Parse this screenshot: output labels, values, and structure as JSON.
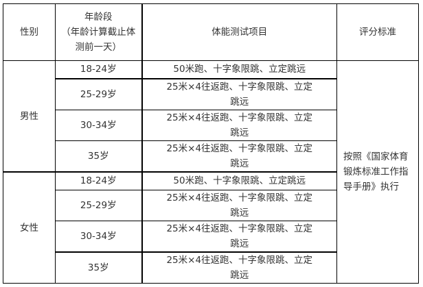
{
  "headers": {
    "gender": "性别",
    "age": "年龄段（年龄计算截止体测前一天）",
    "age_line1": "年龄段",
    "age_line2": "（年龄计算截止体测前一天）",
    "project": "体能测试项目",
    "standard": "评分标准"
  },
  "groups": [
    {
      "gender": "男性",
      "rows": [
        {
          "age": "18-24岁",
          "project": "50米跑、十字象限跳、立定跳远"
        },
        {
          "age": "25-29岁",
          "project": "25米×4往返跑、十字象限跳、立定跳远"
        },
        {
          "age": "30-34岁",
          "project": "25米×4往返跑、十字象限跳、立定跳远"
        },
        {
          "age": "35岁",
          "project": "25米×4往返跑、十字象限跳、立定跳远"
        }
      ]
    },
    {
      "gender": "女性",
      "rows": [
        {
          "age": "18-24岁",
          "project": "50米跑、十字象限跳、立定跳远"
        },
        {
          "age": "25-29岁",
          "project": "25米×4往返跑、十字象限跳、立定跳远"
        },
        {
          "age": "30-34岁",
          "project": "25米×4往返跑、十字象限跳、立定跳远"
        },
        {
          "age": "35岁",
          "project": "25米×4往返跑、十字象限跳、立定跳远"
        }
      ]
    }
  ],
  "standard": "按照《国家体育锻炼标准工作指导手册》执行"
}
